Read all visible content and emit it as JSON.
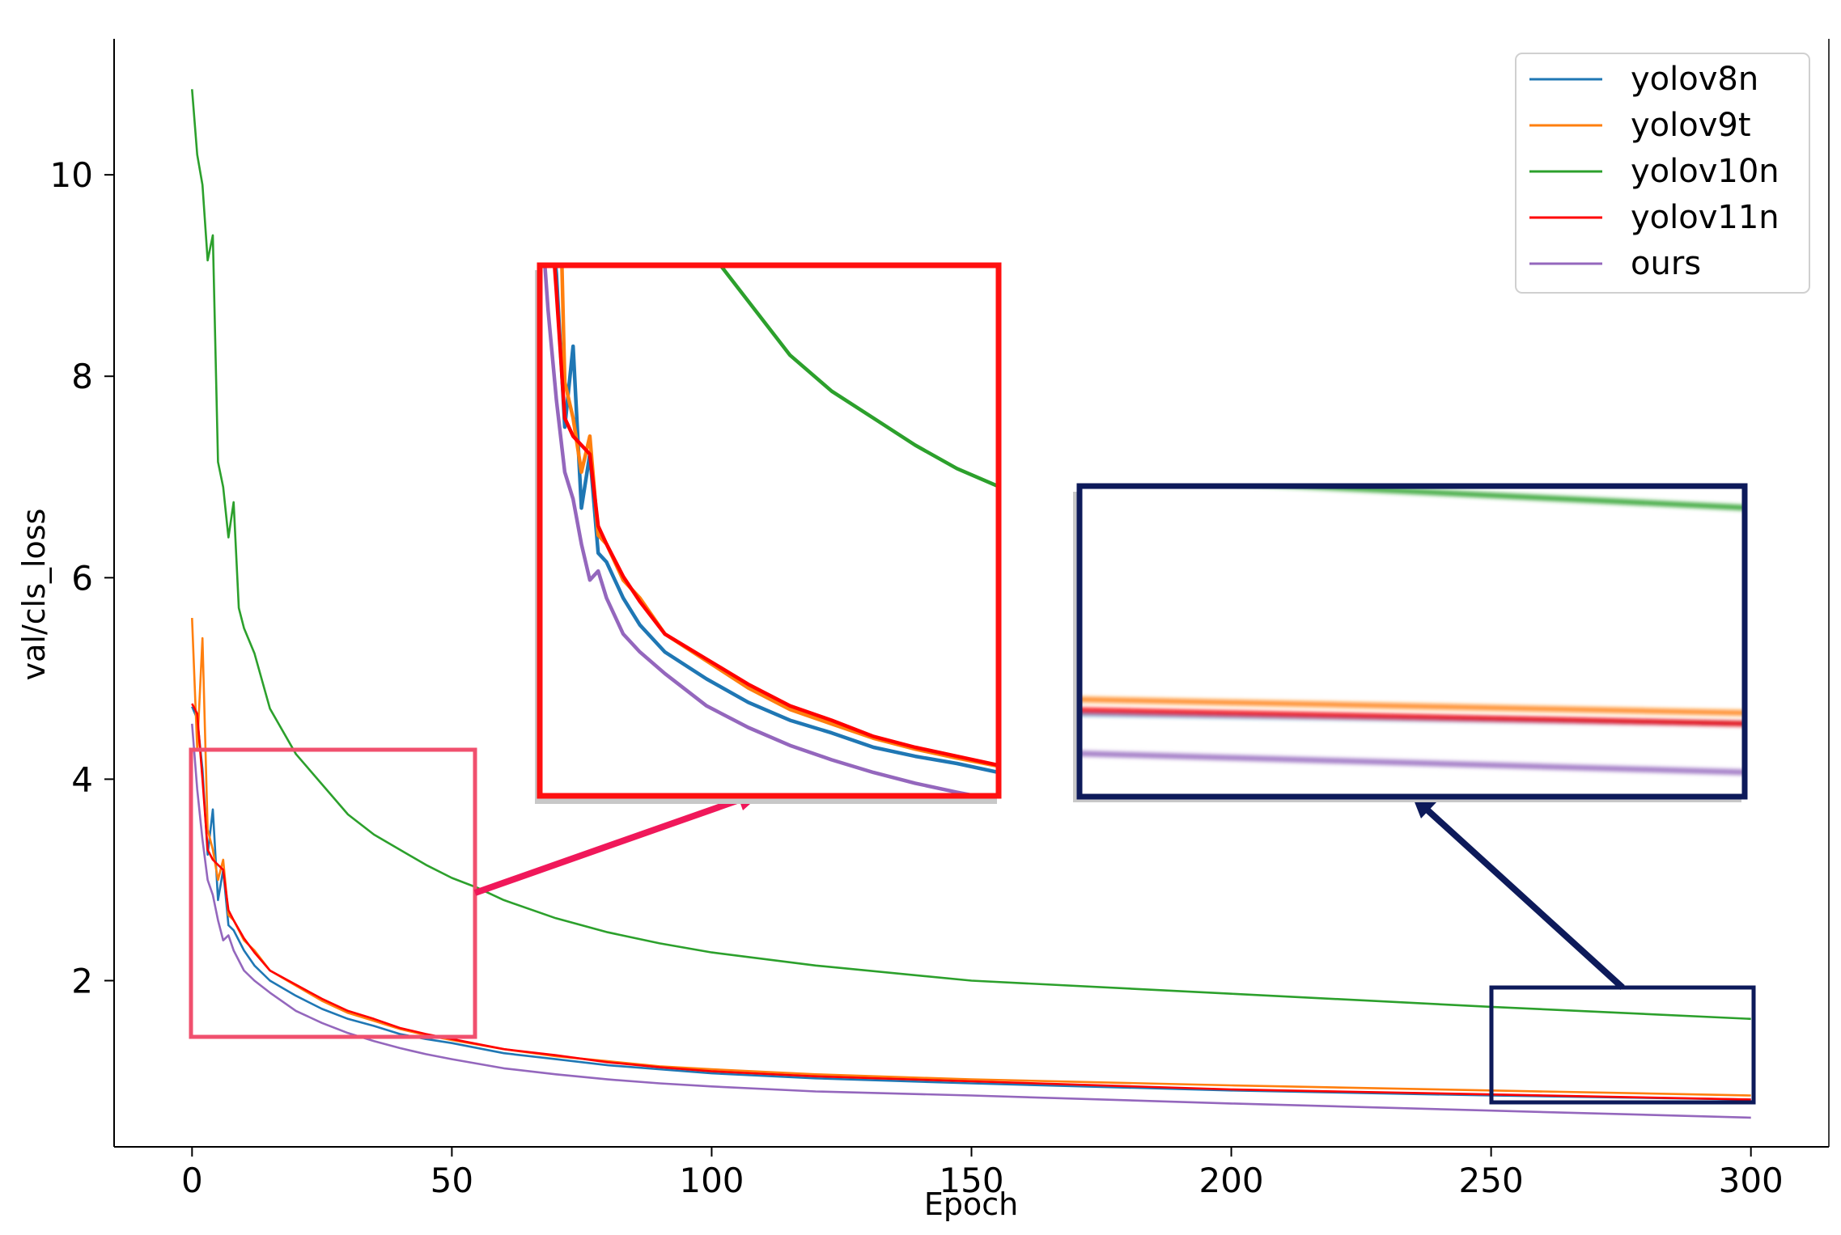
{
  "chart_data": {
    "type": "line",
    "title": "",
    "xlabel": "Epoch",
    "ylabel": "val/cls_loss",
    "xlim": [
      -15,
      315
    ],
    "ylim": [
      0.35,
      11.35
    ],
    "xticks": [
      0,
      50,
      100,
      150,
      200,
      250,
      300
    ],
    "yticks": [
      2,
      4,
      6,
      8,
      10
    ],
    "grid": false,
    "legend_position": "top-right",
    "series": [
      {
        "name": "yolov8n",
        "color": "#1f77b4",
        "x": [
          0,
          1,
          2,
          3,
          4,
          5,
          6,
          7,
          8,
          10,
          12,
          15,
          20,
          25,
          30,
          35,
          40,
          45,
          50,
          60,
          70,
          80,
          90,
          100,
          120,
          150,
          200,
          250,
          300
        ],
        "y": [
          4.72,
          4.6,
          4.1,
          3.25,
          3.7,
          2.8,
          3.1,
          2.55,
          2.5,
          2.3,
          2.15,
          2.0,
          1.85,
          1.72,
          1.62,
          1.55,
          1.47,
          1.42,
          1.38,
          1.28,
          1.22,
          1.16,
          1.12,
          1.08,
          1.03,
          0.98,
          0.91,
          0.86,
          0.82
        ]
      },
      {
        "name": "yolov9t",
        "color": "#ff7f0e",
        "x": [
          0,
          1,
          2,
          3,
          4,
          5,
          6,
          7,
          8,
          10,
          12,
          15,
          20,
          25,
          30,
          35,
          40,
          45,
          50,
          60,
          70,
          80,
          90,
          100,
          120,
          150,
          200,
          250,
          300
        ],
        "y": [
          5.6,
          4.3,
          5.4,
          3.5,
          3.3,
          3.0,
          3.2,
          2.65,
          2.6,
          2.4,
          2.3,
          2.1,
          1.95,
          1.8,
          1.68,
          1.6,
          1.52,
          1.46,
          1.41,
          1.32,
          1.25,
          1.2,
          1.15,
          1.12,
          1.07,
          1.02,
          0.96,
          0.91,
          0.86
        ]
      },
      {
        "name": "yolov10n",
        "color": "#2ca02c",
        "x": [
          0,
          1,
          2,
          3,
          4,
          5,
          6,
          7,
          8,
          9,
          10,
          12,
          15,
          20,
          25,
          30,
          35,
          40,
          45,
          50,
          55,
          60,
          70,
          80,
          90,
          100,
          120,
          150,
          200,
          250,
          300
        ],
        "y": [
          10.85,
          10.2,
          9.9,
          9.15,
          9.4,
          7.15,
          6.9,
          6.4,
          6.75,
          5.7,
          5.5,
          5.25,
          4.7,
          4.25,
          3.95,
          3.65,
          3.45,
          3.3,
          3.15,
          3.02,
          2.92,
          2.8,
          2.62,
          2.48,
          2.37,
          2.28,
          2.15,
          2.0,
          1.87,
          1.74,
          1.62
        ]
      },
      {
        "name": "yolov11n",
        "color": "#ff0000",
        "x": [
          0,
          1,
          2,
          3,
          4,
          5,
          6,
          7,
          8,
          10,
          12,
          15,
          20,
          25,
          30,
          35,
          40,
          45,
          50,
          60,
          70,
          80,
          90,
          100,
          120,
          150,
          200,
          250,
          300
        ],
        "y": [
          4.75,
          4.65,
          4.0,
          3.3,
          3.2,
          3.15,
          3.1,
          2.7,
          2.6,
          2.42,
          2.28,
          2.1,
          1.96,
          1.82,
          1.7,
          1.62,
          1.53,
          1.47,
          1.42,
          1.32,
          1.26,
          1.19,
          1.14,
          1.1,
          1.05,
          1.0,
          0.92,
          0.87,
          0.82
        ]
      },
      {
        "name": "ours",
        "color": "#9467bd",
        "x": [
          0,
          1,
          2,
          3,
          4,
          5,
          6,
          7,
          8,
          10,
          12,
          15,
          20,
          25,
          30,
          35,
          40,
          45,
          50,
          60,
          70,
          80,
          90,
          100,
          120,
          150,
          200,
          250,
          300
        ],
        "y": [
          4.55,
          3.9,
          3.4,
          3.0,
          2.85,
          2.6,
          2.4,
          2.45,
          2.3,
          2.1,
          2.0,
          1.88,
          1.7,
          1.58,
          1.48,
          1.4,
          1.33,
          1.27,
          1.22,
          1.13,
          1.07,
          1.02,
          0.98,
          0.95,
          0.9,
          0.86,
          0.78,
          0.71,
          0.64
        ]
      }
    ],
    "zoom_regions": [
      {
        "x": [
          0,
          55
        ],
        "y": [
          1.2,
          4.15
        ],
        "frame_color": "#f0506e",
        "inset_frame_color": "#ff1010",
        "arrow_color": "#f0185a"
      },
      {
        "x": [
          250,
          300
        ],
        "y": [
          0.55,
          1.7
        ],
        "frame_color": "#0d1a5a",
        "inset_frame_color": "#0d1a5a",
        "arrow_color": "#0d1a5a"
      }
    ]
  }
}
